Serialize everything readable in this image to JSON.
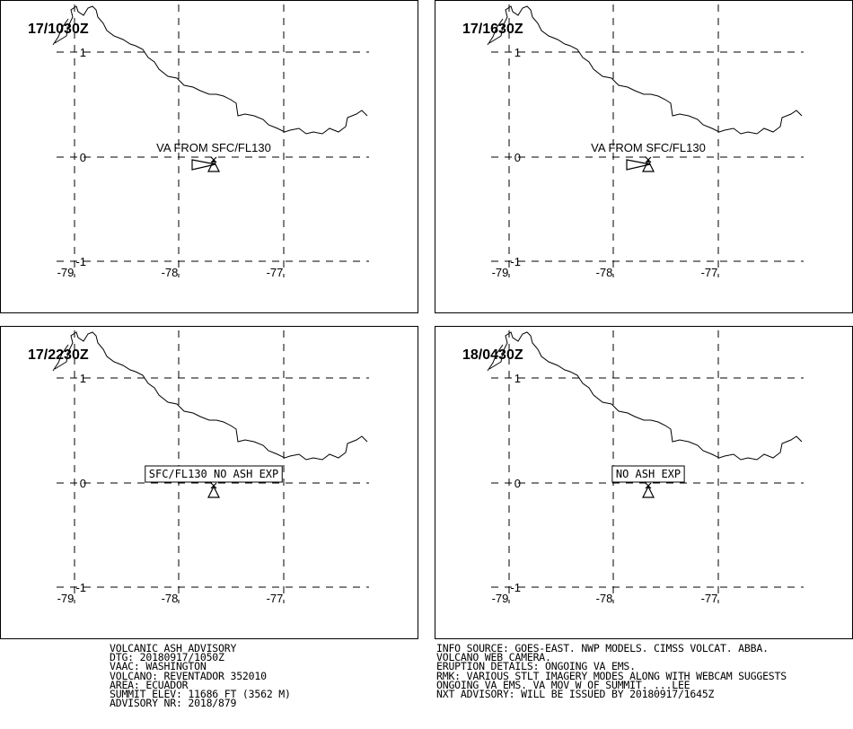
{
  "panels": [
    {
      "time": "17/1030Z",
      "type": "va",
      "label": "VA FROM SFC/FL130"
    },
    {
      "time": "17/1630Z",
      "type": "va",
      "label": "VA FROM SFC/FL130"
    },
    {
      "time": "17/2230Z",
      "type": "box",
      "label": "SFC/FL130 NO ASH EXP"
    },
    {
      "time": "18/0430Z",
      "type": "box",
      "label": "NO ASH EXP"
    }
  ],
  "axis": {
    "lat_labels": [
      "1",
      "0",
      "-1"
    ],
    "lon_labels": [
      "-79",
      "-78",
      "-77"
    ]
  },
  "advisory_left": [
    "VOLCANIC ASH ADVISORY",
    "DTG: 20180917/1050Z",
    "VAAC: WASHINGTON",
    "VOLCANO: REVENTADOR 352010",
    "AREA: ECUADOR",
    "SUMMIT ELEV: 11686 FT (3562 M)",
    "ADVISORY NR: 2018/879"
  ],
  "advisory_right": [
    "INFO SOURCE: GOES-EAST. NWP MODELS. CIMSS VOLCAT. ABBA.",
    "VOLCANO WEB CAMERA.",
    "ERUPTION DETAILS: ONGOING VA EMS.",
    "RMK: VARIOUS STLT IMAGERY MODES ALONG WITH WEBCAM SUGGESTS",
    "ONGOING VA EMS. VA MOV W OF SUMMIT. ...LEE",
    "NXT ADVISORY: WILL BE ISSUED BY 20180917/1645Z"
  ]
}
